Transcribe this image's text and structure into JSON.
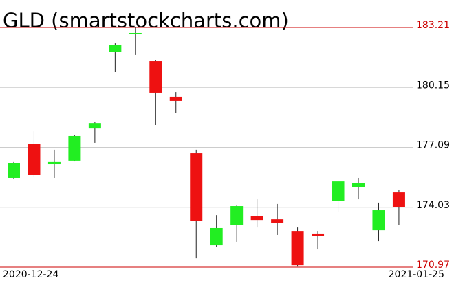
{
  "chart_data": {
    "type": "candlestick",
    "title": "GLD (smartstockcharts.com)",
    "categories": [
      "2020-12-24",
      null,
      null,
      null,
      null,
      null,
      null,
      null,
      null,
      null,
      null,
      null,
      null,
      null,
      null,
      null,
      null,
      null,
      null,
      "2021-01-25"
    ],
    "open": [
      175.53,
      177.25,
      176.23,
      176.41,
      178.05,
      181.98,
      182.89,
      181.49,
      179.67,
      176.79,
      172.09,
      173.11,
      173.6,
      173.42,
      172.79,
      172.69,
      174.34,
      175.07,
      172.86,
      174.79
    ],
    "high": [
      176.34,
      177.91,
      176.97,
      177.7,
      178.37,
      182.4,
      183.21,
      181.56,
      179.91,
      176.97,
      173.63,
      174.16,
      174.44,
      174.2,
      173.0,
      172.79,
      175.42,
      175.53,
      174.27,
      174.93
    ],
    "low": [
      175.49,
      175.6,
      175.53,
      176.37,
      177.32,
      180.93,
      181.81,
      178.23,
      178.83,
      171.42,
      172.02,
      172.27,
      173.0,
      172.62,
      171.0,
      171.88,
      173.77,
      174.44,
      172.3,
      173.14
    ],
    "close": [
      176.3,
      175.67,
      176.34,
      177.67,
      178.33,
      182.33,
      182.93,
      179.88,
      179.46,
      173.32,
      172.97,
      174.09,
      173.35,
      173.25,
      171.07,
      172.55,
      175.35,
      175.25,
      173.88,
      174.05
    ],
    "up_color": "#22ee22",
    "down_color": "#ee1111",
    "limit_color": "#cc0000",
    "ylim": [
      170.97,
      183.21
    ],
    "yticks": [
      170.97,
      174.03,
      177.09,
      180.15,
      183.21
    ],
    "grid": true
  }
}
